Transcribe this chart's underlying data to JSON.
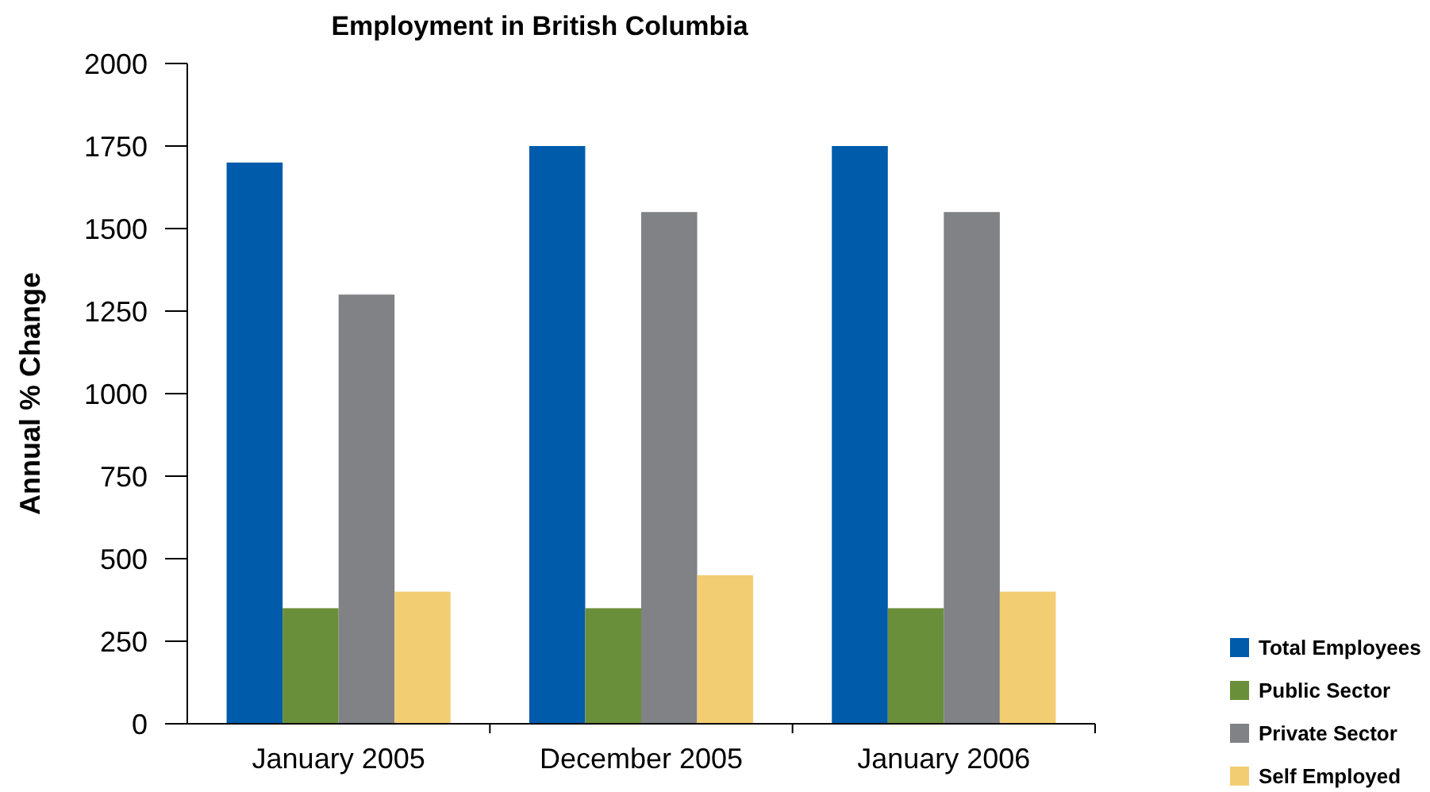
{
  "chart_data": {
    "type": "bar",
    "title": "Employment in British Columbia",
    "ylabel": "Annual % Change",
    "categories": [
      "January 2005",
      "December 2005",
      "January 2006"
    ],
    "series": [
      {
        "name": "Total Employees",
        "color": "#005baa",
        "values": [
          1700,
          1750,
          1750
        ]
      },
      {
        "name": "Public Sector",
        "color": "#6a8f3a",
        "values": [
          350,
          350,
          350
        ]
      },
      {
        "name": "Private Sector",
        "color": "#818285",
        "values": [
          1300,
          1550,
          1550
        ]
      },
      {
        "name": "Self Employed",
        "color": "#f3cd72",
        "values": [
          400,
          450,
          400
        ]
      }
    ],
    "ylim": [
      0,
      2000
    ],
    "yticks": [
      0,
      250,
      500,
      750,
      1000,
      1250,
      1500,
      1750,
      2000
    ],
    "grid": false,
    "legend": "bottom right"
  }
}
